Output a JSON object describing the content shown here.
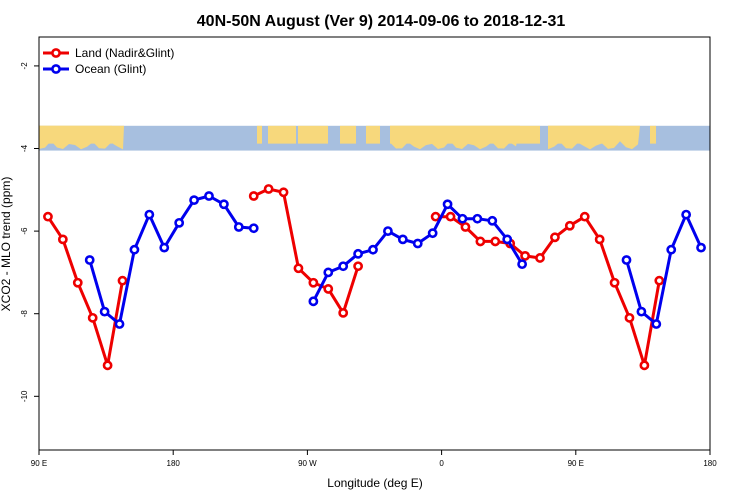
{
  "chart_data": {
    "type": "line",
    "title": "40N-50N August (Ver 9)   2014-09-06 to 2018-12-31",
    "xlabel": "Longitude (deg E)",
    "ylabel": "XCO2 - MLO trend (ppm)",
    "xlim": [
      90,
      540
    ],
    "ylim": [
      -11.3,
      -1.3
    ],
    "x_ticks": [
      {
        "value": 90,
        "label": "90 E"
      },
      {
        "value": 180,
        "label": "180"
      },
      {
        "value": 270,
        "label": "90 W"
      },
      {
        "value": 360,
        "label": "0"
      },
      {
        "value": 450,
        "label": "90 E"
      },
      {
        "value": 540,
        "label": "180"
      }
    ],
    "y_ticks": [
      {
        "value": -2,
        "label": "-2"
      },
      {
        "value": -4,
        "label": "-4"
      },
      {
        "value": -6,
        "label": "-6"
      },
      {
        "value": -8,
        "label": "-8"
      },
      {
        "value": -10,
        "label": "-10"
      }
    ],
    "map_strip": {
      "y_top": -3.45,
      "y_bottom": -4.05,
      "ocean_color": "#a7bfdf",
      "land_color": "#f7d87c"
    },
    "legend": {
      "position": "top-left"
    },
    "series": [
      {
        "name": "Land (Nadir&Glint)",
        "color": "#ee0000",
        "segments": [
          [
            [
              96,
              -5.65
            ],
            [
              106,
              -6.2
            ],
            [
              116,
              -7.25
            ],
            [
              126,
              -8.1
            ],
            [
              136,
              -9.25
            ],
            [
              146,
              -7.2
            ]
          ],
          [
            [
              234,
              -5.15
            ],
            [
              244,
              -4.98
            ],
            [
              254,
              -5.06
            ],
            [
              264,
              -6.9
            ],
            [
              274,
              -7.25
            ],
            [
              284,
              -7.4
            ],
            [
              294,
              -7.98
            ],
            [
              304,
              -6.85
            ]
          ],
          [
            [
              356,
              -5.65
            ],
            [
              366,
              -5.65
            ],
            [
              376,
              -5.9
            ],
            [
              386,
              -6.25
            ],
            [
              396,
              -6.25
            ],
            [
              406,
              -6.3
            ],
            [
              416,
              -6.6
            ],
            [
              426,
              -6.65
            ],
            [
              436,
              -6.15
            ],
            [
              446,
              -5.87
            ],
            [
              456,
              -5.65
            ],
            [
              466,
              -6.2
            ],
            [
              476,
              -7.25
            ],
            [
              486,
              -8.1
            ],
            [
              496,
              -9.25
            ],
            [
              506,
              -7.2
            ]
          ]
        ]
      },
      {
        "name": "Ocean (Glint)",
        "color": "#0000ee",
        "segments": [
          [
            [
              124,
              -6.7
            ],
            [
              134,
              -7.95
            ],
            [
              144,
              -8.25
            ],
            [
              154,
              -6.45
            ],
            [
              164,
              -5.6
            ],
            [
              174,
              -6.4
            ],
            [
              184,
              -5.8
            ],
            [
              194,
              -5.25
            ],
            [
              204,
              -5.15
            ],
            [
              214,
              -5.35
            ],
            [
              224,
              -5.9
            ],
            [
              234,
              -5.93
            ]
          ],
          [
            [
              274,
              -7.7
            ],
            [
              284,
              -7.0
            ],
            [
              294,
              -6.85
            ],
            [
              304,
              -6.55
            ],
            [
              314,
              -6.45
            ],
            [
              324,
              -6.0
            ],
            [
              334,
              -6.2
            ],
            [
              344,
              -6.3
            ],
            [
              354,
              -6.05
            ],
            [
              364,
              -5.35
            ],
            [
              374,
              -5.7
            ],
            [
              384,
              -5.7
            ],
            [
              394,
              -5.75
            ],
            [
              404,
              -6.2
            ],
            [
              414,
              -6.8
            ]
          ],
          [
            [
              484,
              -6.7
            ],
            [
              494,
              -7.95
            ],
            [
              504,
              -8.25
            ],
            [
              514,
              -6.45
            ],
            [
              524,
              -5.6
            ],
            [
              534,
              -6.4
            ]
          ]
        ]
      }
    ]
  }
}
